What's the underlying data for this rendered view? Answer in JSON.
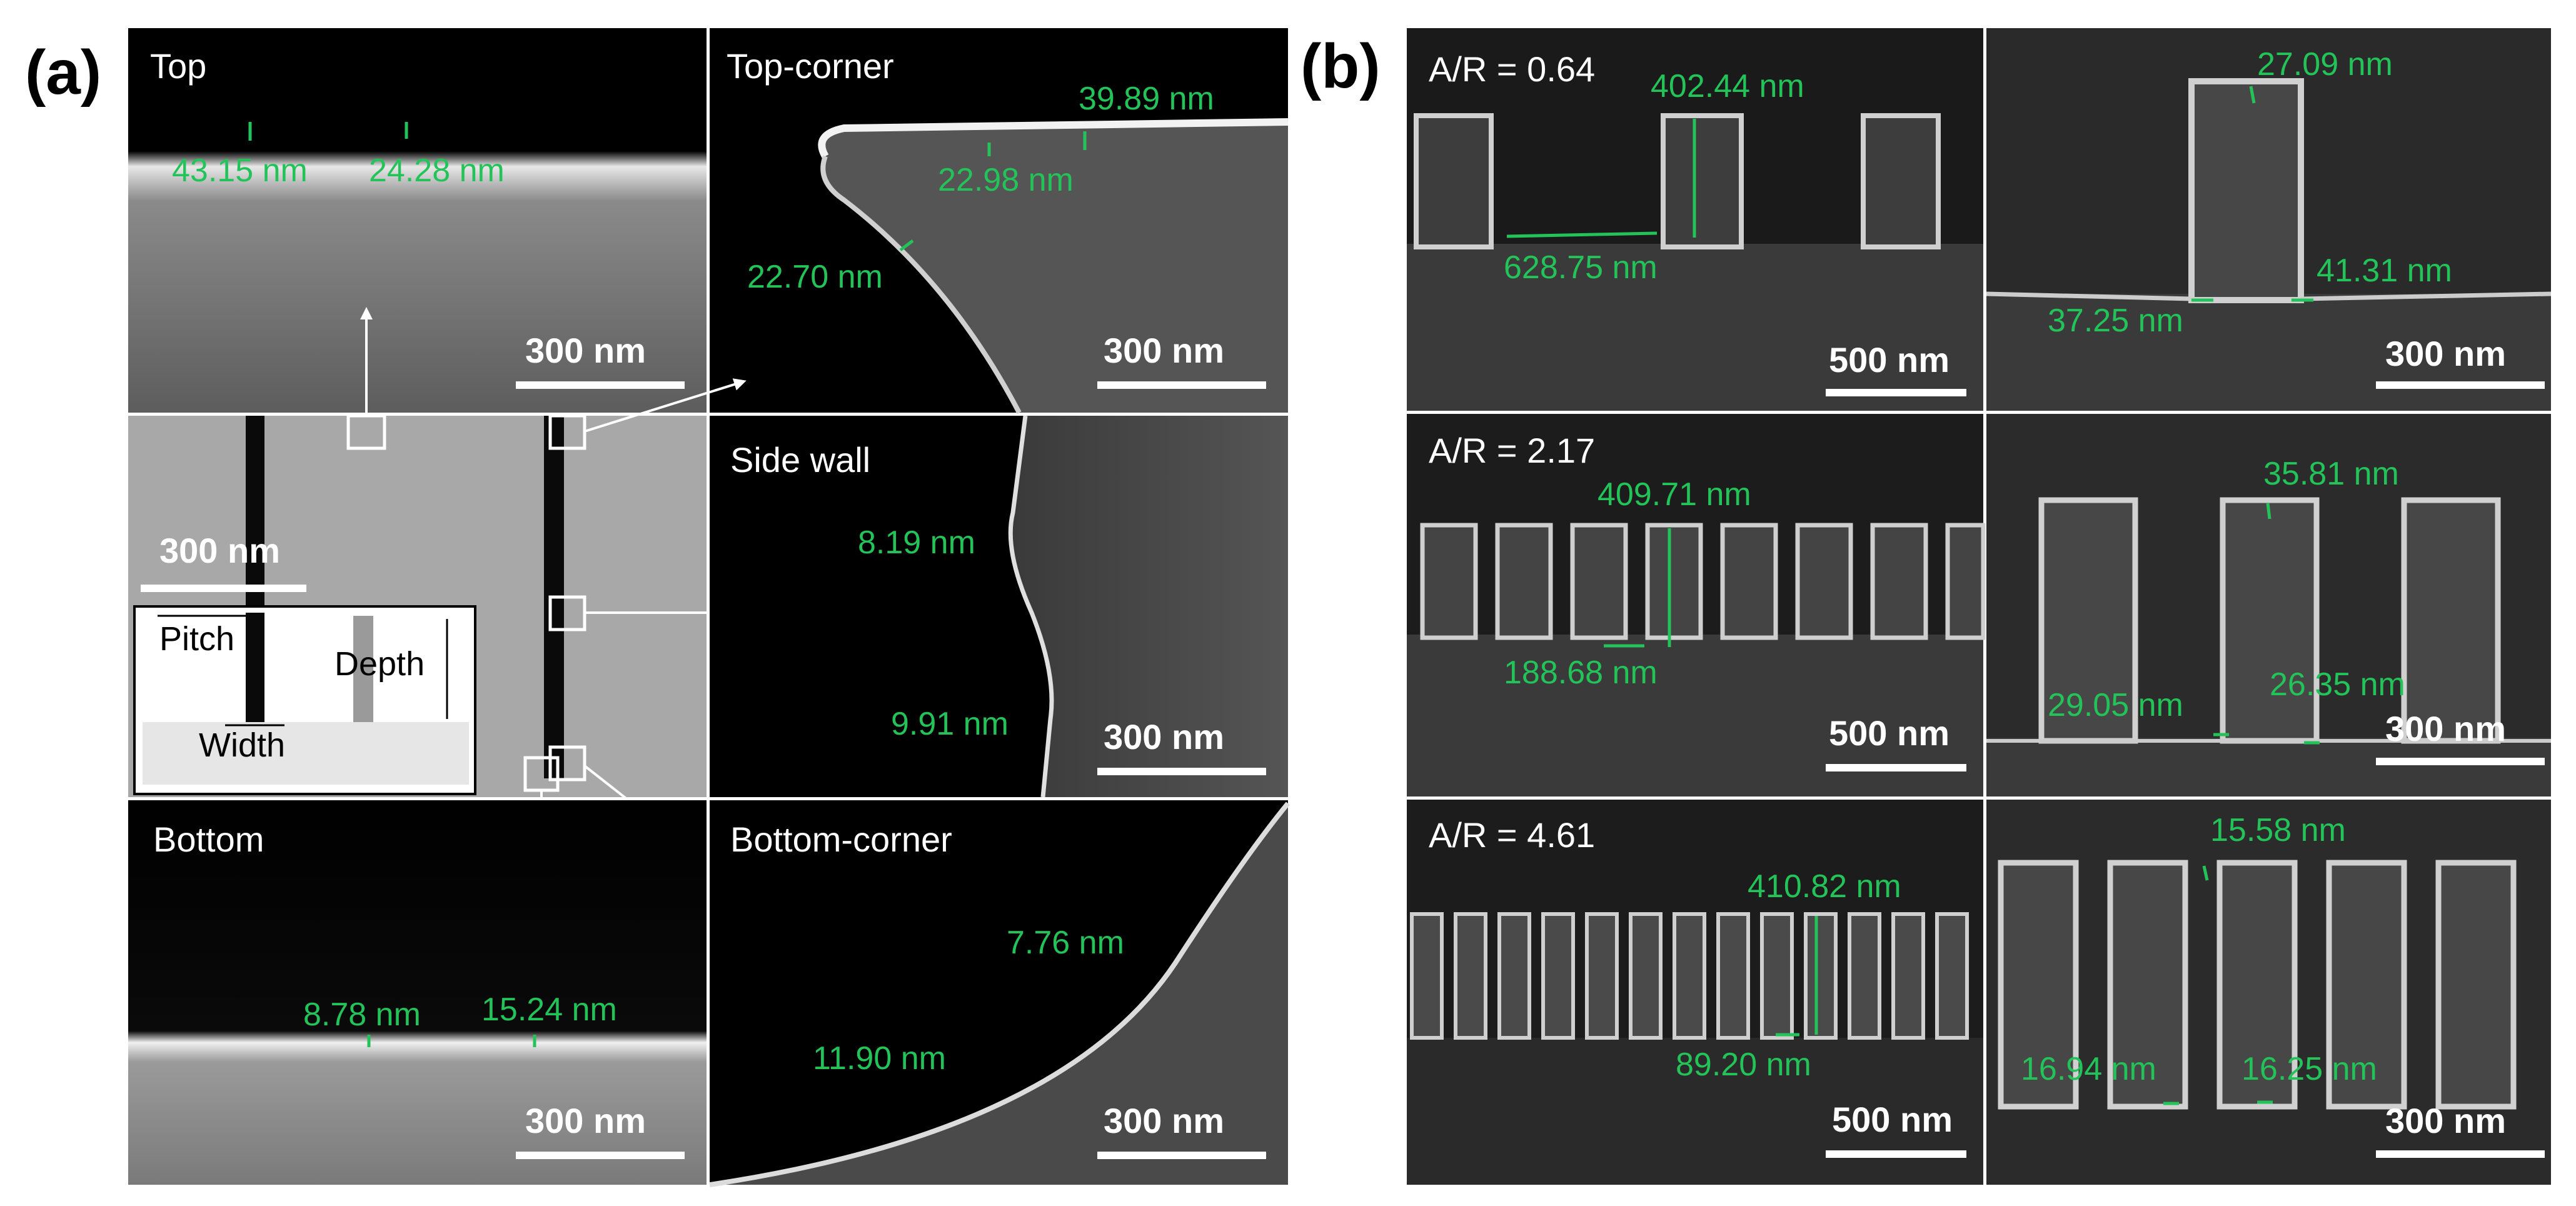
{
  "figure_labels": {
    "a": "(a)",
    "b": "(b)"
  },
  "panel_a": {
    "top": {
      "title": "Top",
      "meas": [
        "43.15 nm",
        "24.28 nm"
      ],
      "scale": "300 nm"
    },
    "top_corner": {
      "title": "Top-corner",
      "meas": [
        "39.89 nm",
        "22.98 nm",
        "22.70 nm"
      ],
      "scale": "300 nm"
    },
    "overview": {
      "scale": "300 nm",
      "inset": {
        "pitch": "Pitch",
        "depth": "Depth",
        "width": "Width"
      }
    },
    "side_wall": {
      "title": "Side wall",
      "meas": [
        "8.19 nm",
        "9.91 nm"
      ],
      "scale": "300 nm"
    },
    "bottom": {
      "title": "Bottom",
      "meas": [
        "8.78 nm",
        "15.24 nm"
      ],
      "scale": "300 nm"
    },
    "bottom_corner": {
      "title": "Bottom-corner",
      "meas": [
        "7.76 nm",
        "11.90 nm"
      ],
      "scale": "300 nm"
    }
  },
  "panel_b": {
    "rows": [
      {
        "ar": "A/R = 0.64",
        "left": {
          "meas": [
            "402.44 nm",
            "628.75 nm"
          ],
          "scale": "500 nm"
        },
        "right": {
          "meas": [
            "27.09 nm",
            "37.25 nm",
            "41.31 nm"
          ],
          "scale": "300 nm"
        }
      },
      {
        "ar": "A/R = 2.17",
        "left": {
          "meas": [
            "409.71 nm",
            "188.68 nm"
          ],
          "scale": "500 nm"
        },
        "right": {
          "meas": [
            "35.81 nm",
            "29.05 nm",
            "26.35 nm"
          ],
          "scale": "300 nm"
        }
      },
      {
        "ar": "A/R = 4.61",
        "left": {
          "meas": [
            "410.82 nm",
            "89.20 nm"
          ],
          "scale": "500 nm"
        },
        "right": {
          "meas": [
            "15.58 nm",
            "16.94 nm",
            "16.25 nm"
          ],
          "scale": "300 nm"
        }
      }
    ]
  }
}
